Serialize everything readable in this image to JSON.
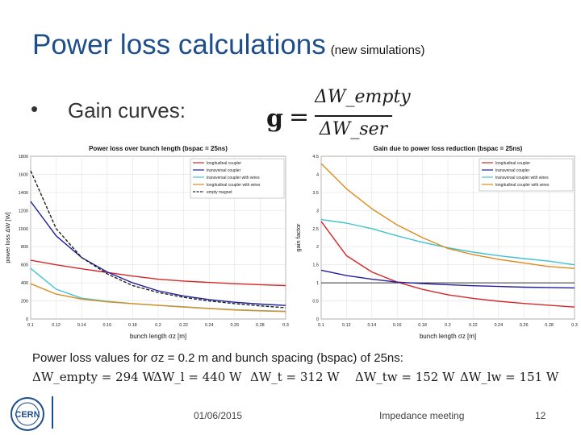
{
  "slide": {
    "title": "Power loss calculations",
    "title_sub": "(new simulations)",
    "bullet_char": "•",
    "bullet_text": "Gain curves:",
    "formula": {
      "lhs": "g",
      "eq": "=",
      "numerator": "ΔW_empty",
      "denominator": "ΔW_ser"
    },
    "power_loss_intro": "Power loss values for σz = 0.2 m and bunch spacing (bspac) of 25ns:",
    "power_loss_values": [
      "ΔW_empty = 294 W",
      "ΔW_l = 440 W",
      "ΔW_t = 312 W",
      "ΔW_tw = 152 W",
      "ΔW_lw = 151 W"
    ],
    "footer": {
      "date": "01/06/2015",
      "event": "Impedance meeting",
      "page": "12"
    },
    "logo_text": "CERN"
  },
  "colors": {
    "title": "#1f4e8c",
    "longitudinal": "#d62728",
    "transversal": "#1f1fa0",
    "transversal_wires": "#3fc1d0",
    "longitudinal_wires": "#e08a1e",
    "empty": "#222222",
    "gain_one": "#333333"
  },
  "chart_data": [
    {
      "type": "line",
      "title": "Power loss over bunch length (bspac = 25ns)",
      "xlabel": "bunch length σz [m]",
      "ylabel": "power loss ΔW [W]",
      "xlim": [
        0.1,
        0.3
      ],
      "ylim": [
        0,
        1800
      ],
      "xticks": [
        "0.1",
        "0.12",
        "0.14",
        "0.16",
        "0.18",
        "0.2",
        "0.22",
        "0.24",
        "0.26",
        "0.28",
        "0.3"
      ],
      "yticks": [
        "0",
        "200",
        "400",
        "600",
        "800",
        "1000",
        "1200",
        "1400",
        "1600",
        "1800"
      ],
      "legend_position": "top-right",
      "grid": true,
      "x": [
        0.1,
        0.12,
        0.14,
        0.16,
        0.18,
        0.2,
        0.22,
        0.24,
        0.26,
        0.28,
        0.3
      ],
      "series": [
        {
          "name": "longitudinal coupler",
          "color_key": "longitudinal",
          "dash": false,
          "values": [
            650,
            600,
            555,
            515,
            475,
            440,
            420,
            405,
            390,
            380,
            370
          ]
        },
        {
          "name": "transversal coupler",
          "color_key": "transversal",
          "dash": false,
          "values": [
            1300,
            920,
            680,
            520,
            400,
            312,
            255,
            215,
            185,
            165,
            150
          ]
        },
        {
          "name": "transversal coupler with wires",
          "color_key": "transversal_wires",
          "dash": false,
          "values": [
            560,
            330,
            230,
            195,
            170,
            152,
            135,
            118,
            103,
            93,
            85
          ]
        },
        {
          "name": "longitudinal coupler with wires",
          "color_key": "longitudinal_wires",
          "dash": false,
          "values": [
            390,
            275,
            220,
            190,
            170,
            151,
            132,
            115,
            100,
            90,
            83
          ]
        },
        {
          "name": "empty magnet",
          "color_key": "empty",
          "dash": true,
          "values": [
            1640,
            1000,
            680,
            500,
            370,
            294,
            240,
            200,
            170,
            145,
            125
          ]
        }
      ]
    },
    {
      "type": "line",
      "title": "Gain due to power loss reduction (bspac = 25ns)",
      "xlabel": "bunch length σz [m]",
      "ylabel": "gain factor",
      "xlim": [
        0.1,
        0.3
      ],
      "ylim": [
        0,
        4.5
      ],
      "xticks": [
        "0.1",
        "0.12",
        "0.14",
        "0.16",
        "0.18",
        "0.2",
        "0.22",
        "0.24",
        "0.26",
        "0.28",
        "0.3"
      ],
      "yticks": [
        "0",
        "0.5",
        "1",
        "1.5",
        "2",
        "2.5",
        "3",
        "3.5",
        "4",
        "4.5"
      ],
      "legend_position": "top-right",
      "grid": true,
      "x": [
        0.1,
        0.12,
        0.14,
        0.16,
        0.18,
        0.2,
        0.22,
        0.24,
        0.26,
        0.28,
        0.3
      ],
      "series": [
        {
          "name": "longitudinal coupler",
          "color_key": "longitudinal",
          "dash": false,
          "values": [
            2.7,
            1.75,
            1.3,
            1.02,
            0.82,
            0.67,
            0.57,
            0.49,
            0.43,
            0.38,
            0.33
          ]
        },
        {
          "name": "transversal coupler",
          "color_key": "transversal",
          "dash": false,
          "values": [
            1.35,
            1.2,
            1.1,
            1.02,
            0.98,
            0.95,
            0.92,
            0.9,
            0.88,
            0.87,
            0.86
          ]
        },
        {
          "name": "transversal coupler with wires",
          "color_key": "transversal_wires",
          "dash": false,
          "values": [
            2.75,
            2.65,
            2.5,
            2.3,
            2.12,
            1.97,
            1.85,
            1.75,
            1.67,
            1.6,
            1.5
          ]
        },
        {
          "name": "longitudinal coupler with wires",
          "color_key": "longitudinal_wires",
          "dash": false,
          "values": [
            4.3,
            3.6,
            3.05,
            2.6,
            2.25,
            1.95,
            1.78,
            1.65,
            1.55,
            1.45,
            1.4
          ]
        }
      ],
      "reference_line": {
        "y": 1,
        "color_key": "gain_one"
      }
    }
  ]
}
